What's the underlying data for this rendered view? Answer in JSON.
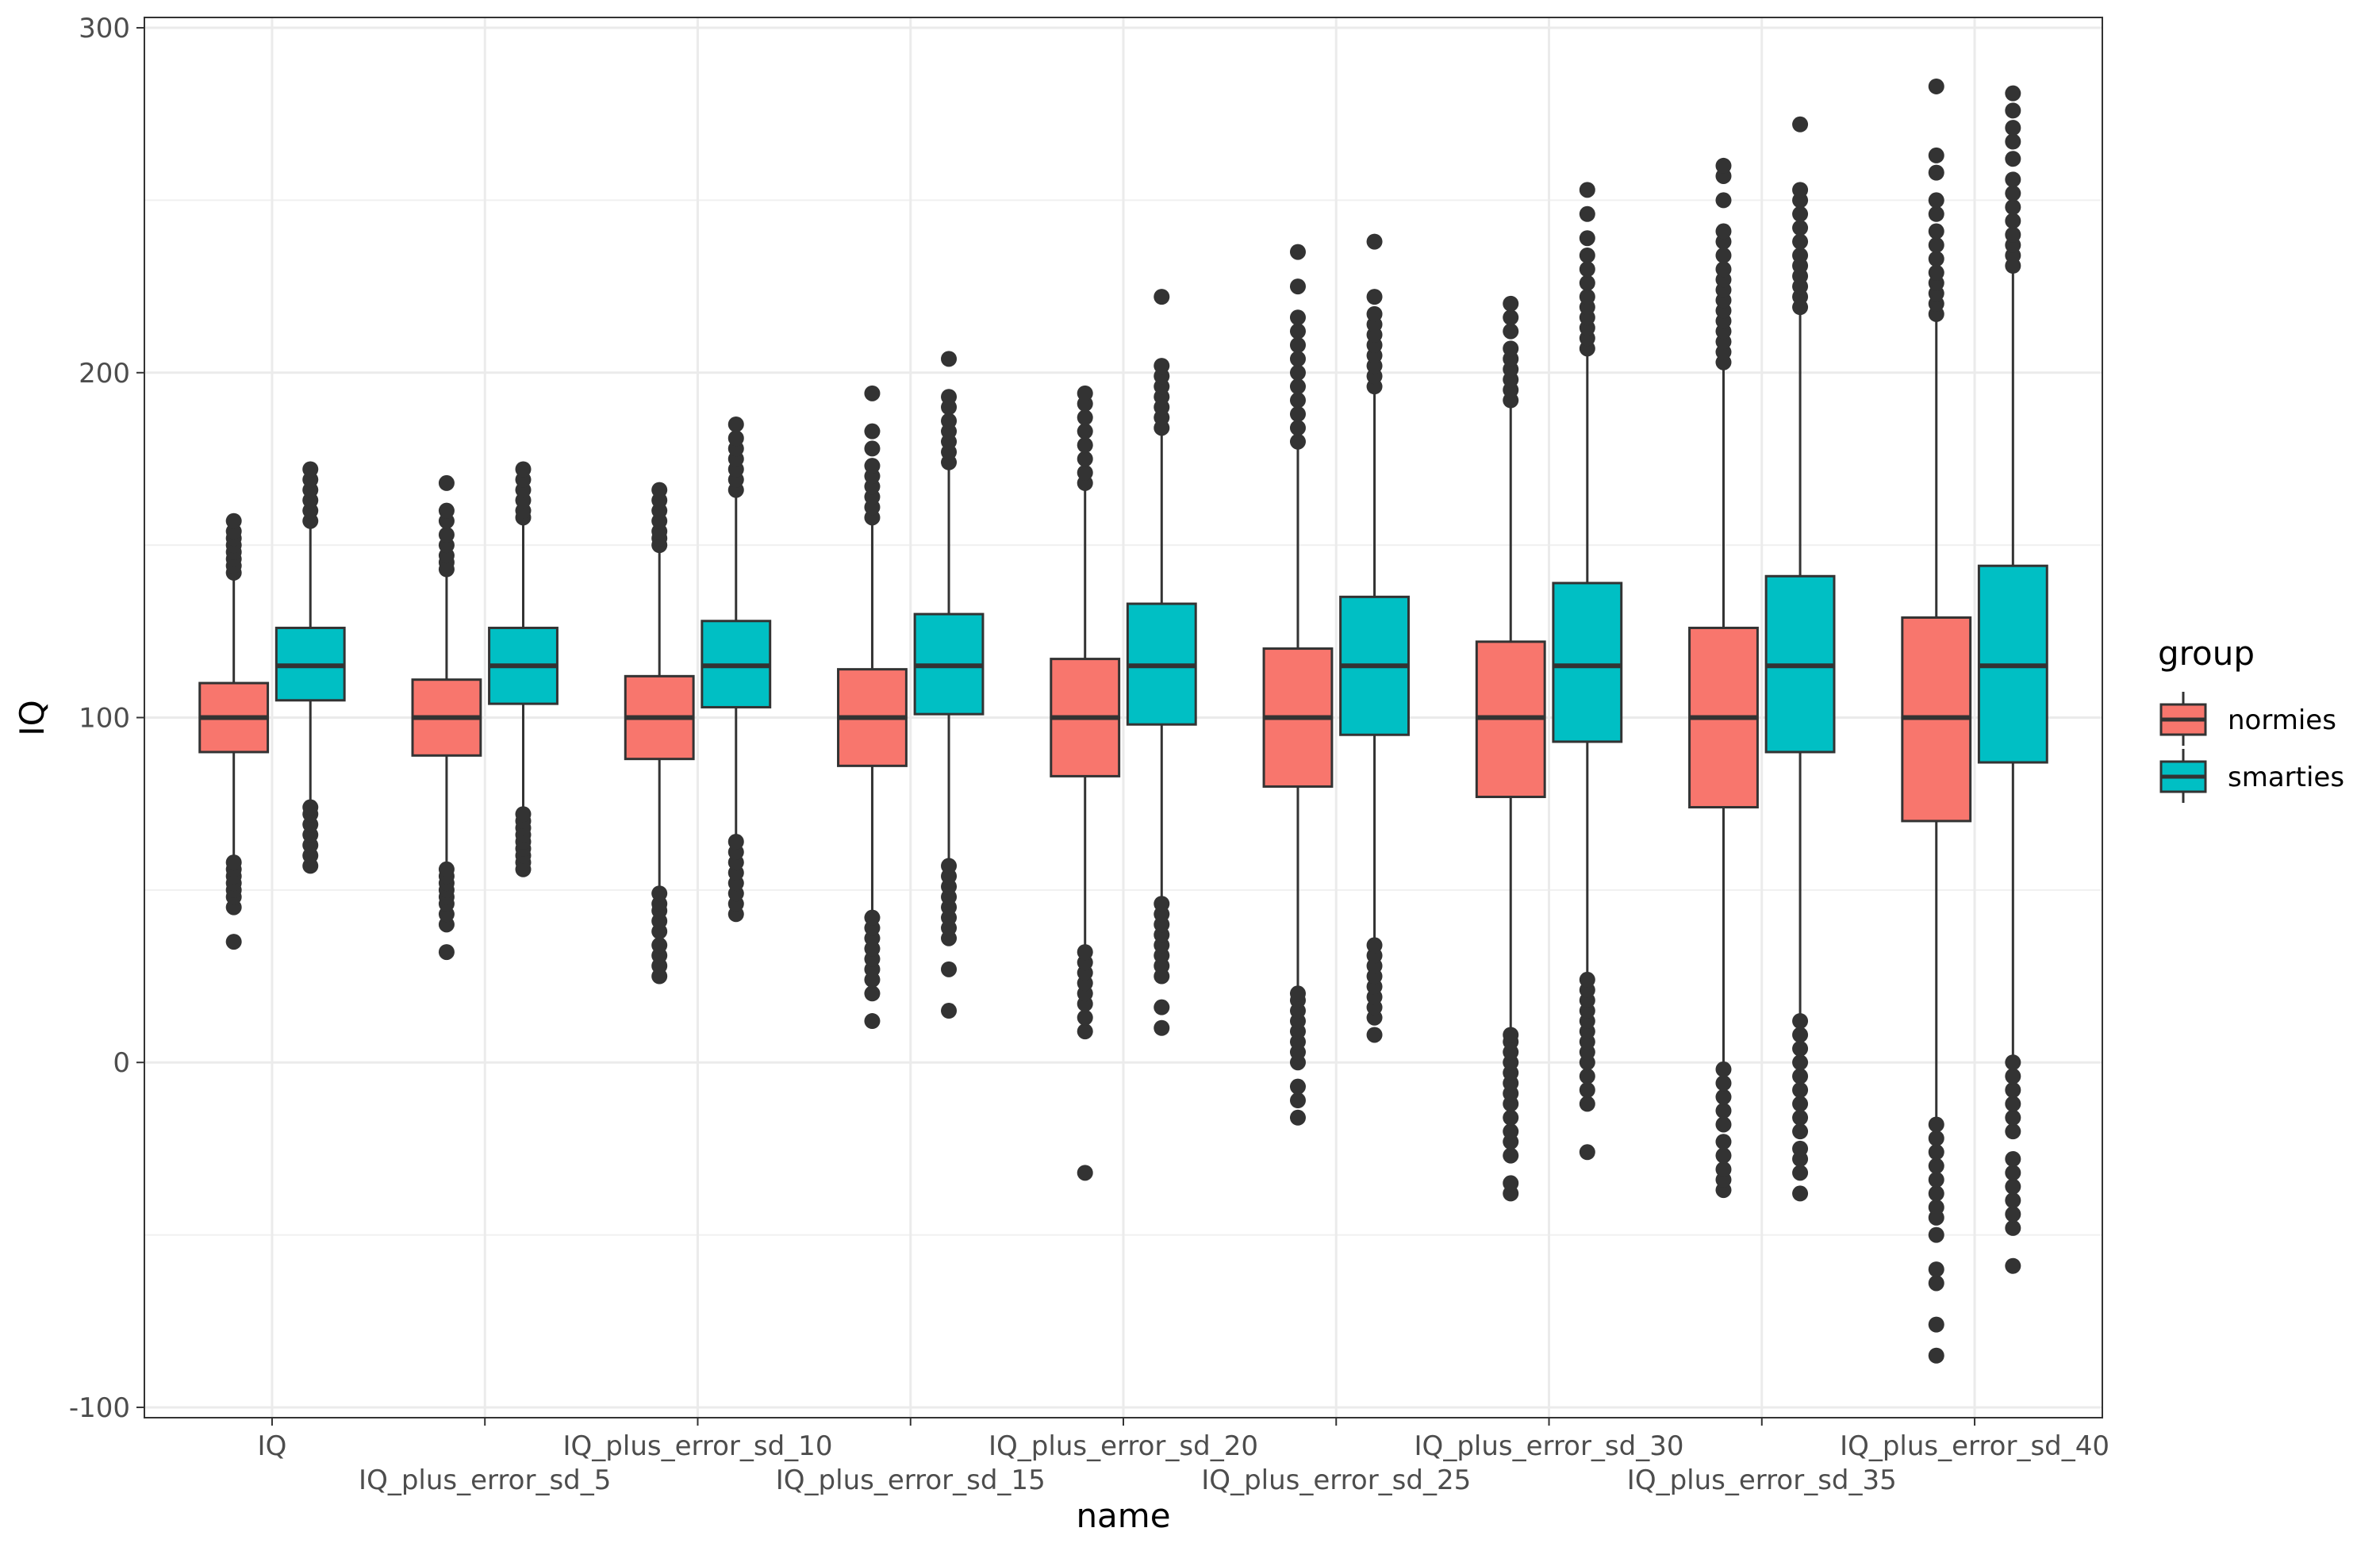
{
  "chart_data": {
    "type": "box",
    "xlabel": "name",
    "ylabel": "IQ",
    "ylim": [
      -103,
      303
    ],
    "yticks": [
      -100,
      0,
      100,
      200,
      300
    ],
    "grid": true,
    "legend": {
      "title": "group",
      "position": "right",
      "entries": [
        {
          "label": "normies",
          "color": "#F8766D"
        },
        {
          "label": "smarties",
          "color": "#00BFC4"
        }
      ]
    },
    "categories": [
      "IQ",
      "IQ_plus_error_sd_5",
      "IQ_plus_error_sd_10",
      "IQ_plus_error_sd_15",
      "IQ_plus_error_sd_20",
      "IQ_plus_error_sd_25",
      "IQ_plus_error_sd_30",
      "IQ_plus_error_sd_35",
      "IQ_plus_error_sd_40"
    ],
    "series": [
      {
        "name": "normies",
        "color": "#F8766D",
        "boxes": [
          {
            "q1": 90,
            "median": 100,
            "q3": 110,
            "whisker_low": 60,
            "whisker_high": 140,
            "outliers": [
              35,
              45,
              48,
              50,
              52,
              54,
              56,
              58,
              142,
              144,
              146,
              148,
              150,
              152,
              154,
              157
            ]
          },
          {
            "q1": 89,
            "median": 100,
            "q3": 111,
            "whisker_low": 58,
            "whisker_high": 142,
            "outliers": [
              32,
              40,
              43,
              46,
              48,
              50,
              52,
              54,
              56,
              143,
              145,
              147,
              150,
              153,
              157,
              160,
              168
            ]
          },
          {
            "q1": 88,
            "median": 100,
            "q3": 112,
            "whisker_low": 51,
            "whisker_high": 148,
            "outliers": [
              25,
              28,
              31,
              34,
              38,
              41,
              44,
              46,
              49,
              150,
              152,
              154,
              157,
              160,
              163,
              166
            ]
          },
          {
            "q1": 86,
            "median": 100,
            "q3": 114,
            "whisker_low": 44,
            "whisker_high": 156,
            "outliers": [
              12,
              20,
              24,
              27,
              30,
              33,
              36,
              39,
              42,
              158,
              161,
              164,
              167,
              170,
              173,
              178,
              183,
              194
            ]
          },
          {
            "q1": 83,
            "median": 100,
            "q3": 117,
            "whisker_low": 33,
            "whisker_high": 167,
            "outliers": [
              -32,
              9,
              13,
              17,
              20,
              23,
              26,
              29,
              32,
              168,
              171,
              175,
              179,
              183,
              187,
              191,
              194
            ]
          },
          {
            "q1": 80,
            "median": 100,
            "q3": 120,
            "whisker_low": 22,
            "whisker_high": 178,
            "outliers": [
              -16,
              -11,
              -7,
              0,
              3,
              6,
              9,
              12,
              15,
              18,
              20,
              180,
              184,
              188,
              192,
              196,
              200,
              204,
              208,
              212,
              216,
              225,
              235
            ]
          },
          {
            "q1": 77,
            "median": 100,
            "q3": 122,
            "whisker_low": 9,
            "whisker_high": 190,
            "outliers": [
              -38,
              -35,
              -27,
              -23,
              -20,
              -16,
              -12,
              -9,
              -6,
              -3,
              0,
              3,
              6,
              8,
              192,
              195,
              198,
              201,
              204,
              207,
              212,
              216,
              220
            ]
          },
          {
            "q1": 74,
            "median": 100,
            "q3": 126,
            "whisker_low": 0,
            "whisker_high": 201,
            "outliers": [
              -37,
              -34,
              -31,
              -27,
              -23,
              -18,
              -14,
              -10,
              -6,
              -2,
              203,
              206,
              209,
              212,
              215,
              218,
              221,
              224,
              227,
              230,
              234,
              238,
              241,
              250,
              257,
              260
            ]
          },
          {
            "q1": 70,
            "median": 100,
            "q3": 129,
            "whisker_low": -16,
            "whisker_high": 215,
            "outliers": [
              -85,
              -76,
              -64,
              -60,
              -50,
              -45,
              -42,
              -38,
              -34,
              -30,
              -26,
              -22,
              -18,
              217,
              220,
              223,
              226,
              229,
              233,
              237,
              241,
              246,
              250,
              258,
              263,
              283
            ]
          }
        ]
      },
      {
        "name": "smarties",
        "color": "#00BFC4",
        "boxes": [
          {
            "q1": 105,
            "median": 115,
            "q3": 126,
            "whisker_low": 75,
            "whisker_high": 155,
            "outliers": [
              57,
              60,
              63,
              66,
              69,
              72,
              74,
              157,
              160,
              163,
              166,
              169,
              172
            ]
          },
          {
            "q1": 104,
            "median": 115,
            "q3": 126,
            "whisker_low": 73,
            "whisker_high": 156,
            "outliers": [
              56,
              58,
              60,
              62,
              64,
              66,
              68,
              70,
              72,
              158,
              160,
              163,
              166,
              169,
              172
            ]
          },
          {
            "q1": 103,
            "median": 115,
            "q3": 128,
            "whisker_low": 66,
            "whisker_high": 164,
            "outliers": [
              43,
              46,
              49,
              52,
              55,
              58,
              61,
              64,
              166,
              169,
              172,
              175,
              178,
              181,
              185
            ]
          },
          {
            "q1": 101,
            "median": 115,
            "q3": 130,
            "whisker_low": 58,
            "whisker_high": 172,
            "outliers": [
              15,
              27,
              36,
              39,
              42,
              45,
              48,
              51,
              54,
              57,
              174,
              177,
              180,
              183,
              186,
              190,
              193,
              204
            ]
          },
          {
            "q1": 98,
            "median": 115,
            "q3": 133,
            "whisker_low": 48,
            "whisker_high": 182,
            "outliers": [
              10,
              16,
              25,
              28,
              31,
              34,
              37,
              40,
              43,
              46,
              184,
              187,
              190,
              193,
              196,
              199,
              202,
              222
            ]
          },
          {
            "q1": 95,
            "median": 115,
            "q3": 135,
            "whisker_low": 36,
            "whisker_high": 194,
            "outliers": [
              8,
              13,
              16,
              19,
              22,
              25,
              28,
              31,
              34,
              196,
              199,
              202,
              205,
              208,
              211,
              214,
              217,
              222,
              238
            ]
          },
          {
            "q1": 93,
            "median": 115,
            "q3": 139,
            "whisker_low": 26,
            "whisker_high": 205,
            "outliers": [
              -26,
              -12,
              -8,
              -4,
              0,
              3,
              6,
              9,
              12,
              15,
              18,
              21,
              24,
              207,
              210,
              213,
              216,
              219,
              222,
              226,
              230,
              234,
              239,
              246,
              253
            ]
          },
          {
            "q1": 90,
            "median": 115,
            "q3": 141,
            "whisker_low": 14,
            "whisker_high": 217,
            "outliers": [
              -38,
              -32,
              -28,
              -25,
              -20,
              -16,
              -12,
              -8,
              -4,
              0,
              4,
              8,
              12,
              219,
              222,
              225,
              228,
              231,
              234,
              238,
              242,
              246,
              250,
              253,
              272
            ]
          },
          {
            "q1": 87,
            "median": 115,
            "q3": 144,
            "whisker_low": 2,
            "whisker_high": 229,
            "outliers": [
              -59,
              -48,
              -44,
              -40,
              -36,
              -32,
              -28,
              -20,
              -16,
              -12,
              -8,
              -4,
              0,
              231,
              234,
              237,
              240,
              244,
              248,
              252,
              256,
              262,
              267,
              271,
              276,
              281
            ]
          }
        ]
      }
    ]
  }
}
